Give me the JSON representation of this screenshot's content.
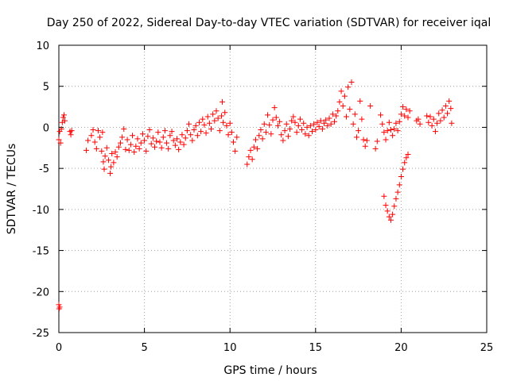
{
  "chart_data": {
    "type": "scatter",
    "title": "Day 250 of 2022, Sidereal Day-to-day VTEC variation (SDTVAR) for receiver iqal",
    "xlabel": "GPS time / hours",
    "ylabel": "SDTVAR / TECUs",
    "xlim": [
      0,
      25
    ],
    "ylim": [
      -25,
      10
    ],
    "grid": true,
    "marker": "+",
    "color": "#ff0000",
    "x_ticks": [
      0,
      5,
      10,
      15,
      20,
      25
    ],
    "y_ticks": [
      -25,
      -20,
      -15,
      -10,
      -5,
      0,
      5,
      10
    ],
    "x_tick_labels": [
      "0",
      "5",
      "10",
      "15",
      "20",
      "25"
    ],
    "y_tick_labels": [
      "-25",
      "-20",
      "-15",
      "-10",
      "-5",
      "0",
      "5",
      "10"
    ],
    "series": [
      {
        "name": "SDTVAR",
        "points": [
          [
            0.0,
            -21.6
          ],
          [
            0.02,
            -22.1
          ],
          [
            0.05,
            -21.9
          ],
          [
            0.0,
            -1.5
          ],
          [
            0.05,
            -0.5
          ],
          [
            0.1,
            -1.9
          ],
          [
            0.15,
            -0.2
          ],
          [
            0.2,
            0.6
          ],
          [
            0.25,
            1.2
          ],
          [
            0.3,
            1.5
          ],
          [
            0.35,
            0.8
          ],
          [
            0.65,
            -0.5
          ],
          [
            0.7,
            -0.9
          ],
          [
            0.75,
            -0.4
          ],
          [
            1.6,
            -2.8
          ],
          [
            1.7,
            -1.6
          ],
          [
            1.9,
            -1.0
          ],
          [
            2.0,
            -0.3
          ],
          [
            2.1,
            -1.8
          ],
          [
            2.2,
            -2.6
          ],
          [
            2.3,
            -0.4
          ],
          [
            2.4,
            -1.2
          ],
          [
            2.5,
            -2.9
          ],
          [
            2.55,
            -0.6
          ],
          [
            2.6,
            -4.2
          ],
          [
            2.65,
            -5.1
          ],
          [
            2.7,
            -3.5
          ],
          [
            2.8,
            -2.5
          ],
          [
            2.9,
            -4.0
          ],
          [
            3.0,
            -5.6
          ],
          [
            3.05,
            -4.8
          ],
          [
            3.1,
            -3.2
          ],
          [
            3.2,
            -4.3
          ],
          [
            3.3,
            -3.0
          ],
          [
            3.4,
            -3.6
          ],
          [
            3.5,
            -2.4
          ],
          [
            3.6,
            -1.9
          ],
          [
            3.7,
            -1.2
          ],
          [
            3.8,
            -0.2
          ],
          [
            3.9,
            -2.7
          ],
          [
            4.0,
            -1.5
          ],
          [
            4.1,
            -2.8
          ],
          [
            4.2,
            -2.1
          ],
          [
            4.3,
            -1.0
          ],
          [
            4.4,
            -3.0
          ],
          [
            4.5,
            -2.3
          ],
          [
            4.6,
            -1.4
          ],
          [
            4.7,
            -2.6
          ],
          [
            4.8,
            -1.9
          ],
          [
            4.9,
            -0.8
          ],
          [
            5.0,
            -1.6
          ],
          [
            5.1,
            -2.9
          ],
          [
            5.2,
            -1.1
          ],
          [
            5.3,
            -0.3
          ],
          [
            5.4,
            -2.0
          ],
          [
            5.5,
            -1.3
          ],
          [
            5.6,
            -2.4
          ],
          [
            5.7,
            -1.7
          ],
          [
            5.8,
            -0.6
          ],
          [
            5.9,
            -1.8
          ],
          [
            6.0,
            -2.5
          ],
          [
            6.1,
            -1.2
          ],
          [
            6.2,
            -0.4
          ],
          [
            6.3,
            -1.9
          ],
          [
            6.4,
            -2.6
          ],
          [
            6.5,
            -1.0
          ],
          [
            6.6,
            -0.5
          ],
          [
            6.7,
            -1.6
          ],
          [
            6.8,
            -2.2
          ],
          [
            6.9,
            -1.4
          ],
          [
            7.0,
            -2.7
          ],
          [
            7.1,
            -1.8
          ],
          [
            7.2,
            -0.9
          ],
          [
            7.3,
            -2.1
          ],
          [
            7.4,
            -1.3
          ],
          [
            7.5,
            -0.4
          ],
          [
            7.6,
            0.4
          ],
          [
            7.7,
            -0.9
          ],
          [
            7.8,
            -1.6
          ],
          [
            7.9,
            -0.3
          ],
          [
            8.0,
            0.2
          ],
          [
            8.1,
            -1.0
          ],
          [
            8.2,
            0.6
          ],
          [
            8.3,
            -0.5
          ],
          [
            8.4,
            1.0
          ],
          [
            8.5,
            0.3
          ],
          [
            8.6,
            -0.7
          ],
          [
            8.7,
            1.3
          ],
          [
            8.8,
            0.5
          ],
          [
            8.9,
            -0.2
          ],
          [
            9.0,
            1.6
          ],
          [
            9.1,
            0.8
          ],
          [
            9.2,
            2.0
          ],
          [
            9.3,
            1.1
          ],
          [
            9.4,
            -0.4
          ],
          [
            9.5,
            1.4
          ],
          [
            9.6,
            0.6
          ],
          [
            9.7,
            1.8
          ],
          [
            9.8,
            0.2
          ],
          [
            9.9,
            -0.9
          ],
          [
            10.0,
            0.5
          ],
          [
            10.1,
            -0.6
          ],
          [
            10.2,
            -1.8
          ],
          [
            10.3,
            -2.9
          ],
          [
            10.4,
            -1.2
          ],
          [
            9.55,
            3.1
          ],
          [
            11.0,
            -4.5
          ],
          [
            11.1,
            -3.6
          ],
          [
            11.2,
            -2.8
          ],
          [
            11.3,
            -3.9
          ],
          [
            11.4,
            -2.4
          ],
          [
            11.5,
            -1.5
          ],
          [
            11.6,
            -2.6
          ],
          [
            11.7,
            -1.0
          ],
          [
            11.8,
            -0.3
          ],
          [
            11.9,
            -1.4
          ],
          [
            12.0,
            0.4
          ],
          [
            12.1,
            -0.6
          ],
          [
            12.2,
            1.5
          ],
          [
            12.3,
            0.3
          ],
          [
            12.4,
            -0.8
          ],
          [
            12.5,
            0.9
          ],
          [
            12.6,
            2.4
          ],
          [
            12.7,
            1.2
          ],
          [
            12.8,
            0.2
          ],
          [
            12.9,
            0.7
          ],
          [
            13.0,
            -0.9
          ],
          [
            13.1,
            -1.6
          ],
          [
            13.2,
            -0.4
          ],
          [
            13.3,
            0.4
          ],
          [
            13.4,
            -1.1
          ],
          [
            13.5,
            -0.2
          ],
          [
            13.6,
            0.8
          ],
          [
            13.7,
            1.3
          ],
          [
            13.8,
            0.6
          ],
          [
            13.9,
            -0.6
          ],
          [
            14.0,
            0.2
          ],
          [
            14.1,
            1.0
          ],
          [
            14.2,
            -0.3
          ],
          [
            14.3,
            0.5
          ],
          [
            14.4,
            -0.8
          ],
          [
            14.5,
            0.0
          ],
          [
            14.6,
            -1.0
          ],
          [
            14.7,
            0.2
          ],
          [
            14.8,
            -0.5
          ],
          [
            14.9,
            0.4
          ],
          [
            15.0,
            -0.3
          ],
          [
            15.1,
            0.6
          ],
          [
            15.2,
            0.1
          ],
          [
            15.3,
            0.8
          ],
          [
            15.4,
            -0.2
          ],
          [
            15.5,
            0.5
          ],
          [
            15.6,
            0.9
          ],
          [
            15.7,
            0.2
          ],
          [
            15.8,
            1.1
          ],
          [
            15.9,
            0.4
          ],
          [
            16.0,
            1.6
          ],
          [
            16.1,
            0.7
          ],
          [
            16.2,
            1.4
          ],
          [
            16.3,
            2.0
          ],
          [
            16.4,
            3.1
          ],
          [
            16.5,
            4.4
          ],
          [
            16.6,
            2.6
          ],
          [
            16.7,
            3.8
          ],
          [
            16.8,
            1.3
          ],
          [
            16.9,
            4.9
          ],
          [
            17.0,
            2.2
          ],
          [
            17.1,
            5.5
          ],
          [
            17.2,
            0.4
          ],
          [
            17.3,
            1.6
          ],
          [
            17.4,
            -1.2
          ],
          [
            17.5,
            -0.4
          ],
          [
            17.6,
            3.2
          ],
          [
            17.7,
            1.0
          ],
          [
            17.8,
            -1.5
          ],
          [
            17.9,
            -2.3
          ],
          [
            18.0,
            -1.6
          ],
          [
            18.2,
            2.6
          ],
          [
            18.5,
            -2.6
          ],
          [
            18.6,
            -1.7
          ],
          [
            18.8,
            1.5
          ],
          [
            18.9,
            0.4
          ],
          [
            19.0,
            -0.6
          ],
          [
            19.1,
            -1.5
          ],
          [
            19.2,
            -0.4
          ],
          [
            19.3,
            0.6
          ],
          [
            19.4,
            -0.3
          ],
          [
            19.5,
            -1.0
          ],
          [
            19.6,
            -0.2
          ],
          [
            19.7,
            0.5
          ],
          [
            19.8,
            -0.4
          ],
          [
            19.9,
            0.7
          ],
          [
            20.0,
            1.6
          ],
          [
            20.1,
            2.5
          ],
          [
            20.2,
            1.4
          ],
          [
            20.3,
            2.2
          ],
          [
            20.4,
            1.2
          ],
          [
            20.5,
            2.0
          ],
          [
            19.0,
            -8.4
          ],
          [
            19.1,
            -9.5
          ],
          [
            19.2,
            -10.2
          ],
          [
            19.3,
            -10.9
          ],
          [
            19.4,
            -11.3
          ],
          [
            19.5,
            -10.6
          ],
          [
            19.6,
            -9.6
          ],
          [
            19.7,
            -8.7
          ],
          [
            19.8,
            -7.9
          ],
          [
            19.9,
            -7.0
          ],
          [
            20.0,
            -6.0
          ],
          [
            20.1,
            -5.1
          ],
          [
            20.2,
            -4.3
          ],
          [
            20.3,
            -3.7
          ],
          [
            20.4,
            -3.3
          ],
          [
            20.9,
            0.8
          ],
          [
            21.0,
            1.0
          ],
          [
            21.1,
            0.4
          ],
          [
            21.5,
            1.4
          ],
          [
            21.6,
            0.6
          ],
          [
            21.7,
            1.3
          ],
          [
            21.8,
            0.2
          ],
          [
            21.9,
            1.0
          ],
          [
            22.0,
            -0.5
          ],
          [
            22.1,
            0.5
          ],
          [
            22.2,
            1.7
          ],
          [
            22.3,
            0.8
          ],
          [
            22.4,
            2.1
          ],
          [
            22.5,
            1.2
          ],
          [
            22.6,
            2.6
          ],
          [
            22.7,
            1.7
          ],
          [
            22.8,
            3.2
          ],
          [
            22.9,
            2.3
          ],
          [
            22.95,
            0.5
          ]
        ]
      }
    ]
  }
}
